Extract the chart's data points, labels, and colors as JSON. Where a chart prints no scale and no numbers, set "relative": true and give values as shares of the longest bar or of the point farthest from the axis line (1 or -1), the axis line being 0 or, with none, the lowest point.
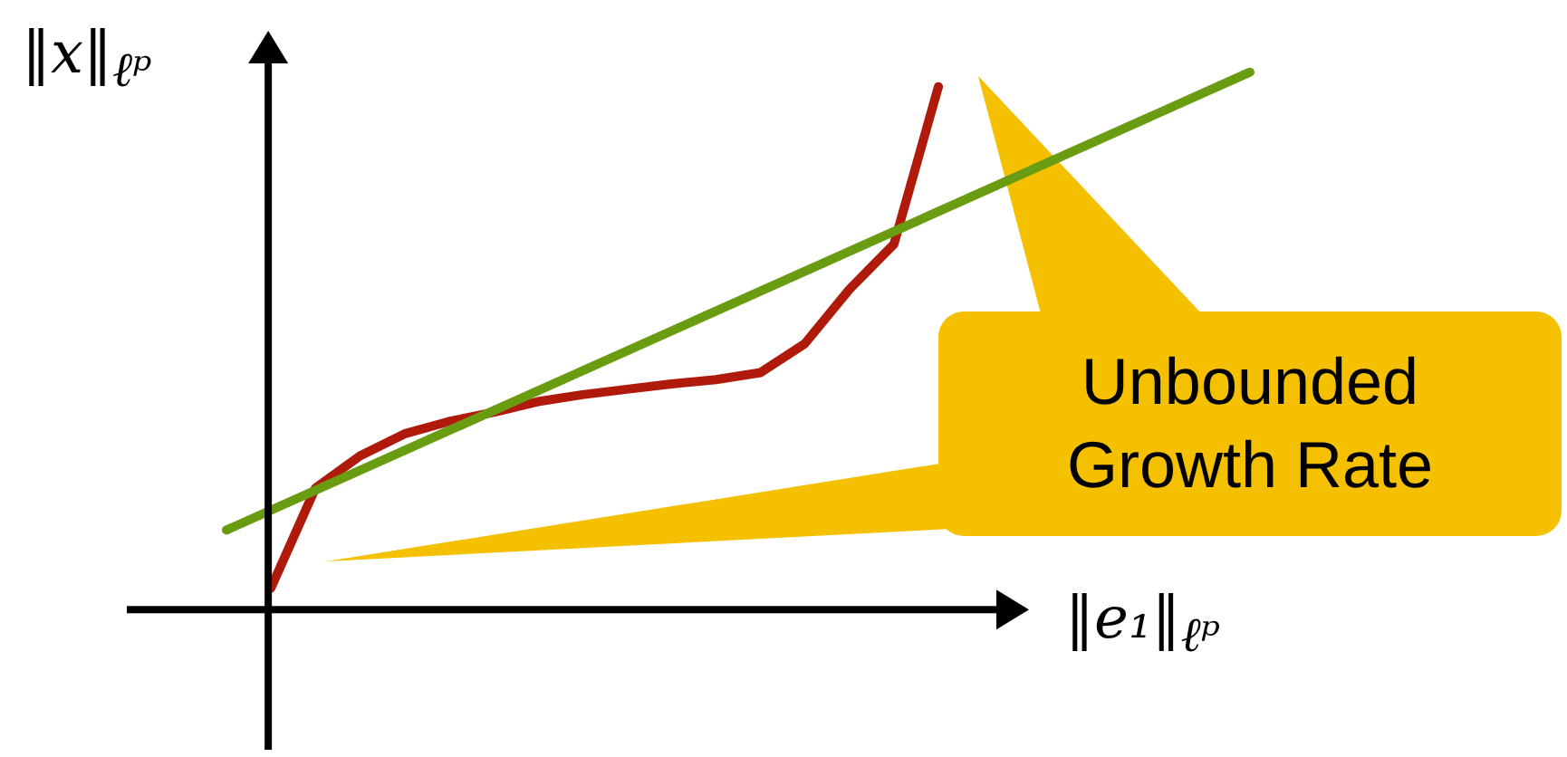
{
  "chart_data": {
    "type": "line",
    "relative": true,
    "xlabel": "‖e₁‖$_{ℓᵖ}$",
    "ylabel": "‖x‖$_{ℓᵖ}$",
    "annotations": [
      "Unbounded Growth Rate"
    ],
    "marker": "none",
    "line_style": "solid",
    "categories": [
      null,
      null,
      null,
      null,
      null,
      null,
      null,
      null,
      null,
      null,
      null,
      null,
      null,
      null,
      null,
      null,
      null,
      null,
      null,
      null,
      null,
      null,
      null,
      null
    ],
    "series": [
      {
        "color": "#b01a0a",
        "values": [
          null,
          0.04,
          0.226,
          0.286,
          0.327,
          0.35,
          0.367,
          0.387,
          0.4,
          0.41,
          0.42,
          0.428,
          0.441,
          0.495,
          0.596,
          0.68,
          0.973,
          null,
          null,
          null,
          null,
          null,
          null,
          null
        ]
      },
      {
        "color": "#6a9c12",
        "values": [
          0.148,
          null,
          null,
          null,
          null,
          null,
          null,
          null,
          null,
          null,
          null,
          null,
          null,
          null,
          null,
          null,
          null,
          null,
          null,
          null,
          null,
          null,
          null,
          1
        ]
      }
    ]
  }
}
